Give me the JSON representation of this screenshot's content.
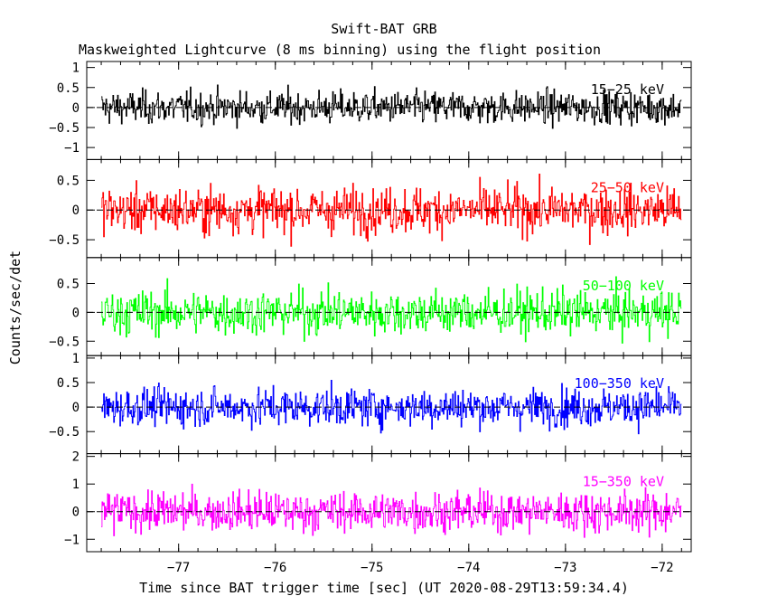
{
  "title": "Swift-BAT GRB",
  "subtitle": "Maskweighted Lightcurve (8 ms binning) using the flight position",
  "ylabel": "Counts/sec/det",
  "xlabel": "Time since BAT trigger time [sec] (UT 2020-08-29T13:59:34.4)",
  "colors": {
    "axes": "#000000",
    "background": "#ffffff"
  },
  "chart_data": {
    "type": "line",
    "style": "histogram-step",
    "bin_width_sec": 0.008,
    "x_range": [
      -77.8,
      -71.8
    ],
    "xlim": [
      -77.95,
      -71.7
    ],
    "x_ticks": [
      -77,
      -76,
      -75,
      -74,
      -73,
      -72
    ],
    "x_tick_labels": [
      "−77",
      "−76",
      "−75",
      "−74",
      "−73",
      "−72"
    ],
    "grid": false,
    "legend": "per-panel label, top-right",
    "panels": [
      {
        "name": "15−25 keV",
        "color": "#000000",
        "ylim": [
          -1.3,
          1.15
        ],
        "y_ticks": [
          -1,
          -0.5,
          0,
          0.5,
          1
        ],
        "y_tick_labels": [
          "−1",
          "−0.5",
          "0",
          "0.5",
          "1"
        ],
        "mean": 0.0,
        "amplitude": 0.9
      },
      {
        "name": "25−50 keV",
        "color": "#ff0000",
        "ylim": [
          -0.8,
          0.85
        ],
        "y_ticks": [
          -0.5,
          0,
          0.5
        ],
        "y_tick_labels": [
          "−0.5",
          "0",
          "0.5"
        ],
        "mean": 0.0,
        "amplitude": 0.85
      },
      {
        "name": "50−100 keV",
        "color": "#00ff00",
        "ylim": [
          -0.75,
          0.95
        ],
        "y_ticks": [
          -0.5,
          0,
          0.5
        ],
        "y_tick_labels": [
          "−0.5",
          "0",
          "0.5"
        ],
        "mean": 0.0,
        "amplitude": 0.85
      },
      {
        "name": "100−350 keV",
        "color": "#0000ff",
        "ylim": [
          -0.95,
          1.05
        ],
        "y_ticks": [
          -0.5,
          0,
          0.5,
          1
        ],
        "y_tick_labels": [
          "−0.5",
          "0",
          "0.5",
          "1"
        ],
        "mean": 0.0,
        "amplitude": 0.85
      },
      {
        "name": "15−350 keV",
        "color": "#ff00ff",
        "ylim": [
          -1.45,
          2.1
        ],
        "y_ticks": [
          -1,
          0,
          1,
          2
        ],
        "y_tick_labels": [
          "−1",
          "0",
          "1",
          "2"
        ],
        "mean": 0.0,
        "amplitude": 1.6
      }
    ]
  }
}
